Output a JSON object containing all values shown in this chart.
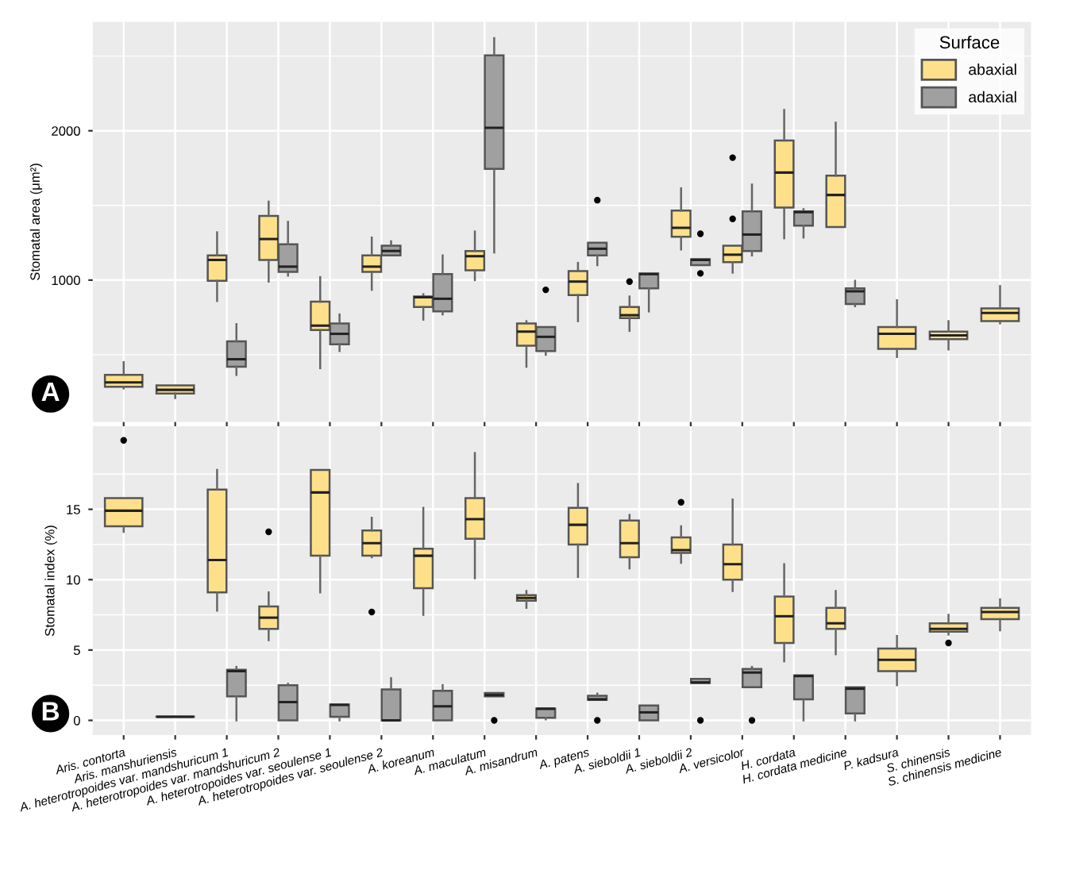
{
  "chart_data": [
    {
      "type": "box",
      "ylabel": "Stomatal area (μm²)",
      "legend_title": "Surface",
      "legend": "top right",
      "grid": true,
      "tick_labels": "y",
      "annotations": [
        "A"
      ],
      "ylim": [
        50,
        2730
      ],
      "yticks": [
        1000,
        2000
      ],
      "series": [
        {
          "name": "abaxial",
          "color": "#ffe08a",
          "boxes": [
            {
              "low": 275,
              "q1": 285,
              "median": 315,
              "q3": 365,
              "high": 450
            },
            {
              "low": 210,
              "q1": 240,
              "median": 265,
              "q3": 295,
              "high": 295
            },
            {
              "low": 860,
              "q1": 995,
              "median": 1135,
              "q3": 1165,
              "high": 1320
            },
            {
              "low": 990,
              "q1": 1135,
              "median": 1275,
              "q3": 1430,
              "high": 1525
            },
            {
              "low": 410,
              "q1": 665,
              "median": 695,
              "q3": 855,
              "high": 1020
            },
            {
              "low": 935,
              "q1": 1055,
              "median": 1090,
              "q3": 1165,
              "high": 1285
            },
            {
              "low": 735,
              "q1": 820,
              "median": 885,
              "q3": 890,
              "high": 905
            },
            {
              "low": 1000,
              "q1": 1065,
              "median": 1160,
              "q3": 1195,
              "high": 1325
            },
            {
              "low": 420,
              "q1": 560,
              "median": 655,
              "q3": 710,
              "high": 725
            },
            {
              "low": 725,
              "q1": 900,
              "median": 990,
              "q3": 1060,
              "high": 1115
            },
            {
              "low": 660,
              "q1": 745,
              "median": 765,
              "q3": 820,
              "high": 890,
              "outliers": [
                990
              ]
            },
            {
              "low": 1205,
              "q1": 1290,
              "median": 1350,
              "q3": 1465,
              "high": 1615
            },
            {
              "low": 1050,
              "q1": 1120,
              "median": 1170,
              "q3": 1230,
              "high": 1230,
              "outliers": [
                1410,
                1820
              ]
            },
            {
              "low": 1280,
              "q1": 1485,
              "median": 1720,
              "q3": 1935,
              "high": 2140
            },
            {
              "low": 1355,
              "q1": 1355,
              "median": 1570,
              "q3": 1700,
              "high": 2055
            },
            {
              "low": 485,
              "q1": 540,
              "median": 640,
              "q3": 685,
              "high": 865
            },
            {
              "low": 535,
              "q1": 605,
              "median": 630,
              "q3": 655,
              "high": 725
            },
            {
              "low": 710,
              "q1": 725,
              "median": 780,
              "q3": 810,
              "high": 960
            }
          ]
        },
        {
          "name": "adaxial",
          "color": "#a0a0a0",
          "boxes": [
            null,
            null,
            {
              "low": 365,
              "q1": 420,
              "median": 470,
              "q3": 590,
              "high": 705
            },
            {
              "low": 1030,
              "q1": 1055,
              "median": 1090,
              "q3": 1240,
              "high": 1390
            },
            {
              "low": 525,
              "q1": 570,
              "median": 640,
              "q3": 710,
              "high": 770
            },
            {
              "low": 1165,
              "q1": 1165,
              "median": 1195,
              "q3": 1230,
              "high": 1260
            },
            {
              "low": 770,
              "q1": 790,
              "median": 875,
              "q3": 1040,
              "high": 1165
            },
            {
              "low": 1185,
              "q1": 1745,
              "median": 2020,
              "q3": 2505,
              "high": 2620
            },
            {
              "low": 500,
              "q1": 525,
              "median": 620,
              "q3": 685,
              "high": 685,
              "outliers": [
                935
              ]
            },
            {
              "low": 1100,
              "q1": 1165,
              "median": 1210,
              "q3": 1250,
              "high": 1250,
              "outliers": [
                1535
              ]
            },
            {
              "low": 790,
              "q1": 945,
              "median": 1040,
              "q3": 1045,
              "high": 1045
            },
            {
              "low": 1100,
              "q1": 1100,
              "median": 1135,
              "q3": 1140,
              "high": 1140,
              "outliers": [
                1045,
                1310
              ]
            },
            {
              "low": 1165,
              "q1": 1195,
              "median": 1305,
              "q3": 1460,
              "high": 1640
            },
            {
              "low": 1285,
              "q1": 1365,
              "median": 1455,
              "q3": 1460,
              "high": 1475
            },
            {
              "low": 825,
              "q1": 840,
              "median": 925,
              "q3": 945,
              "high": 995
            },
            null,
            null,
            null
          ]
        }
      ]
    },
    {
      "type": "box",
      "ylabel": "Stomatal index (%)",
      "grid": true,
      "annotations": [
        "B"
      ],
      "categories": [
        "Aris. contorta",
        "Aris. manshuriensis",
        "A. heterotropoides var. mandshuricum 1",
        "A. heterotropoides var. mandshuricum 2",
        "A. heterotropoides var. seoulense 1",
        "A. heterotropoides var. seoulense 2",
        "A. koreanum",
        "A. maculatum",
        "A. misandrum",
        "A. patens",
        "A. sieboldii 1",
        "A. sieboldii 2",
        "A. versicolor",
        "H. cordata",
        "H. cordata medicine",
        "P. kadsura",
        "S. chinensis",
        "S. chinensis medicine"
      ],
      "ylim": [
        -1.05,
        20.9
      ],
      "yticks": [
        0,
        5,
        10,
        15
      ],
      "series": [
        {
          "color": "#ffe08a",
          "boxes": [
            {
              "low": 13.4,
              "q1": 13.8,
              "median": 14.9,
              "q3": 15.8,
              "high": 15.8,
              "outliers": [
                19.9
              ]
            },
            null,
            {
              "low": 7.8,
              "q1": 9.1,
              "median": 11.4,
              "q3": 16.4,
              "high": 17.8
            },
            {
              "low": 5.7,
              "q1": 6.5,
              "median": 7.3,
              "q3": 8.1,
              "high": 9.1,
              "outliers": [
                13.4
              ]
            },
            {
              "low": 9.1,
              "q1": 11.7,
              "median": 16.2,
              "q3": 17.8,
              "high": 17.8
            },
            {
              "low": 11.6,
              "q1": 11.7,
              "median": 12.6,
              "q3": 13.5,
              "high": 14.4,
              "outliers": [
                7.7
              ]
            },
            {
              "low": 7.5,
              "q1": 9.4,
              "median": 11.7,
              "q3": 12.2,
              "high": 15.1
            },
            {
              "low": 10.1,
              "q1": 12.9,
              "median": 14.3,
              "q3": 15.8,
              "high": 19.0
            },
            {
              "low": 8.0,
              "q1": 8.5,
              "median": 8.7,
              "q3": 8.9,
              "high": 9.2
            },
            {
              "low": 10.2,
              "q1": 12.5,
              "median": 13.9,
              "q3": 15.1,
              "high": 16.8
            },
            {
              "low": 10.8,
              "q1": 11.6,
              "median": 12.6,
              "q3": 14.2,
              "high": 14.6
            },
            {
              "low": 11.2,
              "q1": 11.9,
              "median": 12.1,
              "q3": 13.0,
              "high": 13.8,
              "outliers": [
                15.5
              ]
            },
            {
              "low": 9.2,
              "q1": 10.0,
              "median": 11.1,
              "q3": 12.5,
              "high": 15.7
            },
            {
              "low": 4.2,
              "q1": 5.5,
              "median": 7.4,
              "q3": 8.8,
              "high": 11.1
            },
            {
              "low": 4.7,
              "q1": 6.5,
              "median": 6.9,
              "q3": 8.0,
              "high": 9.2
            },
            {
              "low": 2.5,
              "q1": 3.5,
              "median": 4.3,
              "q3": 5.1,
              "high": 6.0
            },
            {
              "low": 6.1,
              "q1": 6.3,
              "median": 6.5,
              "q3": 6.9,
              "high": 7.5,
              "outliers": [
                5.5
              ]
            },
            {
              "low": 6.4,
              "q1": 7.2,
              "median": 7.7,
              "q3": 8.0,
              "high": 8.6
            }
          ]
        },
        {
          "color": "#a0a0a0",
          "boxes": [
            null,
            {
              "low": 0.25,
              "q1": 0.25,
              "median": 0.25,
              "q3": 0.27,
              "high": 0.27
            },
            {
              "low": 0,
              "q1": 1.7,
              "median": 3.5,
              "q3": 3.6,
              "high": 3.8
            },
            {
              "low": 0,
              "q1": 0,
              "median": 1.3,
              "q3": 2.5,
              "high": 2.6
            },
            {
              "low": 0,
              "q1": 0.25,
              "median": 1.1,
              "q3": 1.13,
              "high": 1.13
            },
            {
              "low": 0,
              "q1": 0,
              "median": 0,
              "q3": 2.2,
              "high": 3.0
            },
            {
              "low": 0,
              "q1": 0,
              "median": 1.0,
              "q3": 2.1,
              "high": 2.5
            },
            {
              "low": 1.7,
              "q1": 1.7,
              "median": 1.8,
              "q3": 1.95,
              "high": 1.95,
              "outliers": [
                0
              ]
            },
            {
              "low": 0.07,
              "q1": 0.18,
              "median": 0.82,
              "q3": 0.85,
              "high": 0.85
            },
            {
              "low": 1.45,
              "q1": 1.45,
              "median": 1.5,
              "q3": 1.75,
              "high": 1.9,
              "outliers": [
                0
              ]
            },
            {
              "low": 0,
              "q1": 0,
              "median": 0.57,
              "q3": 1.06,
              "high": 1.06
            },
            {
              "low": 2.65,
              "q1": 2.65,
              "median": 2.7,
              "q3": 2.95,
              "high": 2.95,
              "outliers": [
                0
              ]
            },
            {
              "low": 2.35,
              "q1": 2.35,
              "median": 3.4,
              "q3": 3.65,
              "high": 3.8,
              "outliers": [
                0
              ]
            },
            {
              "low": 0,
              "q1": 1.5,
              "median": 3.15,
              "q3": 3.2,
              "high": 3.2
            },
            {
              "low": 0,
              "q1": 0.5,
              "median": 2.25,
              "q3": 2.35,
              "high": 2.35
            },
            null,
            null,
            null
          ]
        }
      ]
    }
  ]
}
